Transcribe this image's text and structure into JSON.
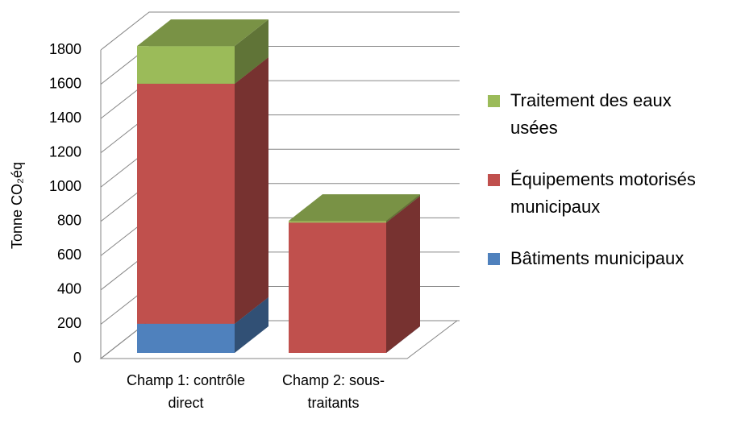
{
  "chart_data": {
    "type": "bar3d_stacked",
    "ylabel": "Tonne CO₂éq",
    "categories": [
      "Champ 1: contrôle direct",
      "Champ 2: sous-traitants"
    ],
    "series": [
      {
        "name": "Bâtiments municipaux",
        "color": "#4f81bd",
        "values": [
          170,
          0
        ]
      },
      {
        "name": "Équipements motorisés municipaux",
        "color": "#c0504d",
        "values": [
          1400,
          760
        ]
      },
      {
        "name": "Traitement des eaux usées",
        "color": "#9bbb59",
        "values": [
          220,
          10
        ]
      }
    ],
    "ylim": [
      0,
      1800
    ],
    "yticks": [
      0,
      200,
      400,
      600,
      800,
      1000,
      1200,
      1400,
      1600,
      1800
    ],
    "grid": true
  }
}
